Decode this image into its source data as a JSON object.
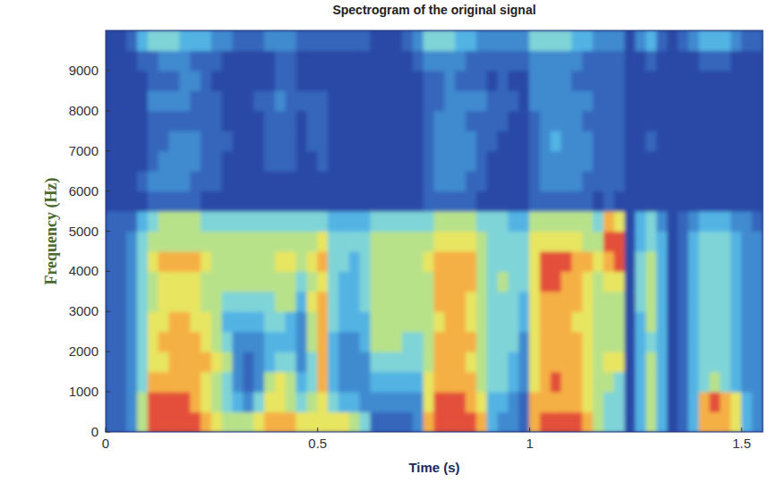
{
  "chart_data": {
    "type": "heatmap",
    "title": "Spectrogram of the original signal",
    "x_label": "Time (s)",
    "y_label": "Frequency (Hz)",
    "xlim": [
      0,
      1.55
    ],
    "ylim": [
      0,
      10000
    ],
    "xticks": [
      0,
      0.5,
      1,
      1.5
    ],
    "yticks": [
      0,
      1000,
      2000,
      3000,
      4000,
      5000,
      6000,
      7000,
      8000,
      9000
    ],
    "clim": [
      0,
      9
    ],
    "x": [
      0.0125,
      0.0375,
      0.0625,
      0.0875,
      0.1125,
      0.1375,
      0.1625,
      0.1875,
      0.2125,
      0.2375,
      0.2625,
      0.2875,
      0.3125,
      0.3375,
      0.3625,
      0.3875,
      0.4125,
      0.4375,
      0.4625,
      0.4875,
      0.5125,
      0.5375,
      0.5625,
      0.5875,
      0.6125,
      0.6375,
      0.6625,
      0.6875,
      0.7125,
      0.7375,
      0.7625,
      0.7875,
      0.8125,
      0.8375,
      0.8625,
      0.8875,
      0.9125,
      0.9375,
      0.9625,
      0.9875,
      1.0125,
      1.0375,
      1.0625,
      1.0875,
      1.1125,
      1.1375,
      1.1625,
      1.1875,
      1.2125,
      1.2375,
      1.2625,
      1.2875,
      1.3125,
      1.3375,
      1.3625,
      1.3875,
      1.4125,
      1.4375,
      1.4625,
      1.4875,
      1.5125,
      1.5375
    ],
    "y": [
      250,
      750,
      1250,
      1750,
      2250,
      2750,
      3250,
      3750,
      4250,
      4750,
      5250,
      5750,
      6250,
      6750,
      7250,
      7750,
      8250,
      8750,
      9250,
      9750
    ],
    "cells": [
      [
        2,
        2,
        2,
        2,
        2,
        2,
        2,
        2,
        2,
        2,
        2,
        1,
        1,
        1,
        1,
        1,
        1,
        1,
        1,
        1
      ],
      [
        2,
        2,
        2,
        2,
        2,
        2,
        2,
        2,
        2,
        2,
        2,
        1,
        1,
        1,
        1,
        1,
        1,
        1,
        1,
        1
      ],
      [
        3,
        3,
        3,
        3,
        3,
        3,
        3,
        3,
        3,
        3,
        2,
        1,
        1,
        1,
        1,
        1,
        1,
        1,
        1,
        2
      ],
      [
        6,
        6,
        5,
        5,
        5,
        5,
        5,
        5,
        5,
        5,
        4,
        1,
        2,
        1,
        1,
        1,
        1,
        1,
        2,
        4
      ],
      [
        9,
        9,
        8,
        7,
        7,
        7,
        6,
        6,
        7,
        6,
        5,
        2,
        3,
        2,
        2,
        2,
        3,
        2,
        2,
        5
      ],
      [
        9,
        9,
        8,
        7,
        8,
        7,
        7,
        7,
        8,
        6,
        6,
        2,
        3,
        3,
        2,
        2,
        3,
        2,
        3,
        5
      ],
      [
        9,
        9,
        8,
        8,
        8,
        8,
        7,
        7,
        8,
        6,
        6,
        2,
        3,
        3,
        3,
        2,
        3,
        2,
        3,
        5
      ],
      [
        9,
        9,
        8,
        8,
        8,
        8,
        7,
        7,
        8,
        6,
        6,
        2,
        3,
        3,
        3,
        2,
        3,
        3,
        3,
        4
      ],
      [
        9,
        8,
        8,
        8,
        8,
        7,
        7,
        7,
        8,
        6,
        6,
        2,
        2,
        3,
        3,
        2,
        2,
        3,
        2,
        4
      ],
      [
        8,
        7,
        7,
        8,
        7,
        7,
        6,
        6,
        7,
        6,
        5,
        1,
        2,
        2,
        2,
        2,
        2,
        2,
        2,
        4
      ],
      [
        7,
        6,
        6,
        7,
        6,
        6,
        6,
        6,
        6,
        6,
        5,
        1,
        2,
        2,
        2,
        2,
        2,
        1,
        2,
        3
      ],
      [
        6,
        5,
        5,
        6,
        5,
        4,
        5,
        6,
        6,
        6,
        5,
        1,
        1,
        1,
        2,
        1,
        1,
        1,
        1,
        3
      ],
      [
        6,
        4,
        3,
        3,
        3,
        4,
        5,
        6,
        6,
        6,
        5,
        1,
        1,
        1,
        1,
        1,
        1,
        1,
        1,
        2
      ],
      [
        6,
        3,
        2,
        2,
        3,
        4,
        5,
        6,
        6,
        6,
        5,
        1,
        1,
        1,
        1,
        1,
        1,
        1,
        1,
        2
      ],
      [
        7,
        5,
        3,
        3,
        3,
        4,
        5,
        6,
        6,
        6,
        5,
        1,
        1,
        1,
        1,
        1,
        2,
        1,
        1,
        2
      ],
      [
        8,
        7,
        6,
        4,
        4,
        5,
        5,
        6,
        6,
        6,
        5,
        1,
        1,
        2,
        2,
        2,
        2,
        1,
        1,
        3
      ],
      [
        8,
        7,
        7,
        5,
        4,
        5,
        6,
        6,
        7,
        6,
        5,
        1,
        1,
        2,
        2,
        2,
        3,
        2,
        2,
        3
      ],
      [
        8,
        6,
        6,
        5,
        4,
        4,
        6,
        6,
        7,
        6,
        5,
        1,
        1,
        2,
        2,
        2,
        2,
        2,
        2,
        3
      ],
      [
        7,
        5,
        4,
        3,
        3,
        3,
        4,
        5,
        6,
        6,
        5,
        1,
        1,
        1,
        1,
        1,
        2,
        1,
        1,
        2
      ],
      [
        7,
        6,
        5,
        5,
        6,
        6,
        7,
        6,
        7,
        6,
        5,
        1,
        1,
        1,
        2,
        2,
        2,
        1,
        1,
        2
      ],
      [
        7,
        7,
        8,
        8,
        8,
        8,
        8,
        7,
        8,
        7,
        5,
        1,
        1,
        2,
        2,
        2,
        2,
        1,
        1,
        2
      ],
      [
        7,
        5,
        4,
        4,
        4,
        5,
        5,
        5,
        5,
        5,
        4,
        1,
        1,
        1,
        1,
        1,
        1,
        1,
        1,
        2
      ],
      [
        7,
        4,
        3,
        3,
        3,
        4,
        4,
        4,
        5,
        5,
        4,
        1,
        1,
        1,
        1,
        1,
        1,
        1,
        1,
        2
      ],
      [
        6,
        4,
        3,
        3,
        3,
        4,
        4,
        4,
        4,
        5,
        4,
        1,
        1,
        1,
        1,
        1,
        1,
        1,
        1,
        2
      ],
      [
        5,
        3,
        3,
        3,
        4,
        4,
        5,
        5,
        5,
        5,
        4,
        1,
        1,
        1,
        1,
        1,
        1,
        1,
        1,
        2
      ],
      [
        2,
        3,
        4,
        5,
        6,
        6,
        6,
        6,
        6,
        6,
        5,
        1,
        1,
        1,
        1,
        1,
        1,
        1,
        1,
        1
      ],
      [
        2,
        3,
        4,
        5,
        6,
        6,
        6,
        6,
        6,
        6,
        5,
        1,
        1,
        1,
        1,
        1,
        1,
        1,
        1,
        1
      ],
      [
        2,
        3,
        4,
        5,
        6,
        6,
        6,
        6,
        6,
        6,
        5,
        1,
        1,
        1,
        1,
        1,
        1,
        1,
        1,
        1
      ],
      [
        2,
        3,
        4,
        5,
        5,
        6,
        6,
        6,
        6,
        6,
        5,
        1,
        1,
        1,
        1,
        1,
        1,
        1,
        1,
        2
      ],
      [
        3,
        3,
        4,
        5,
        5,
        6,
        6,
        6,
        6,
        6,
        5,
        1,
        1,
        1,
        1,
        1,
        1,
        1,
        2,
        3
      ],
      [
        8,
        7,
        7,
        6,
        6,
        6,
        6,
        6,
        7,
        6,
        5,
        2,
        2,
        2,
        2,
        2,
        2,
        2,
        3,
        5
      ],
      [
        9,
        9,
        8,
        8,
        8,
        7,
        8,
        8,
        8,
        7,
        6,
        2,
        3,
        3,
        3,
        3,
        2,
        2,
        3,
        5
      ],
      [
        9,
        9,
        8,
        8,
        8,
        8,
        8,
        8,
        8,
        7,
        6,
        2,
        3,
        3,
        3,
        3,
        3,
        3,
        3,
        5
      ],
      [
        9,
        9,
        8,
        8,
        8,
        8,
        8,
        8,
        8,
        7,
        6,
        2,
        3,
        3,
        3,
        3,
        3,
        2,
        3,
        4
      ],
      [
        9,
        8,
        8,
        7,
        8,
        7,
        7,
        8,
        8,
        7,
        6,
        2,
        2,
        3,
        3,
        2,
        3,
        2,
        2,
        4
      ],
      [
        8,
        7,
        6,
        6,
        6,
        6,
        6,
        6,
        6,
        6,
        5,
        1,
        2,
        2,
        2,
        2,
        3,
        2,
        2,
        3
      ],
      [
        4,
        4,
        5,
        5,
        5,
        5,
        5,
        5,
        5,
        5,
        5,
        1,
        1,
        1,
        2,
        2,
        2,
        1,
        2,
        3
      ],
      [
        3,
        4,
        5,
        5,
        5,
        5,
        5,
        6,
        5,
        5,
        5,
        1,
        1,
        1,
        1,
        2,
        2,
        2,
        2,
        3
      ],
      [
        3,
        3,
        4,
        4,
        5,
        5,
        5,
        5,
        5,
        5,
        4,
        1,
        1,
        1,
        1,
        1,
        2,
        1,
        2,
        3
      ],
      [
        2,
        2,
        3,
        3,
        3,
        4,
        4,
        5,
        5,
        5,
        4,
        1,
        1,
        1,
        1,
        1,
        1,
        1,
        2,
        3
      ],
      [
        8,
        8,
        7,
        7,
        7,
        7,
        7,
        7,
        7,
        7,
        6,
        2,
        2,
        2,
        2,
        2,
        3,
        3,
        3,
        5
      ],
      [
        9,
        8,
        8,
        8,
        8,
        8,
        8,
        9,
        9,
        7,
        6,
        2,
        3,
        3,
        3,
        3,
        3,
        3,
        3,
        5
      ],
      [
        9,
        8,
        9,
        8,
        8,
        8,
        8,
        9,
        9,
        7,
        6,
        2,
        3,
        3,
        4,
        3,
        3,
        3,
        3,
        5
      ],
      [
        9,
        8,
        8,
        8,
        8,
        8,
        8,
        8,
        9,
        7,
        6,
        2,
        3,
        3,
        3,
        3,
        3,
        3,
        3,
        5
      ],
      [
        9,
        8,
        8,
        8,
        8,
        7,
        8,
        8,
        8,
        7,
        6,
        2,
        3,
        3,
        3,
        3,
        3,
        2,
        3,
        4
      ],
      [
        8,
        7,
        7,
        7,
        7,
        7,
        7,
        7,
        8,
        6,
        6,
        2,
        2,
        3,
        3,
        2,
        3,
        2,
        2,
        4
      ],
      [
        6,
        6,
        6,
        6,
        6,
        6,
        6,
        6,
        7,
        6,
        5,
        1,
        2,
        2,
        2,
        2,
        2,
        2,
        2,
        3
      ],
      [
        5,
        5,
        6,
        7,
        6,
        6,
        6,
        7,
        8,
        9,
        8,
        2,
        2,
        2,
        2,
        2,
        2,
        2,
        2,
        3
      ],
      [
        5,
        5,
        5,
        7,
        6,
        6,
        6,
        7,
        9,
        9,
        7,
        1,
        2,
        2,
        2,
        2,
        2,
        2,
        2,
        3
      ],
      [
        1,
        1,
        1,
        1,
        1,
        1,
        1,
        1,
        1,
        1,
        1,
        1,
        1,
        1,
        1,
        1,
        1,
        1,
        1,
        1
      ],
      [
        4,
        4,
        4,
        4,
        4,
        4,
        5,
        5,
        5,
        4,
        4,
        1,
        1,
        1,
        1,
        1,
        1,
        1,
        1,
        3
      ],
      [
        6,
        6,
        6,
        6,
        5,
        6,
        6,
        6,
        6,
        5,
        5,
        1,
        1,
        1,
        2,
        1,
        1,
        1,
        2,
        4
      ],
      [
        4,
        4,
        4,
        4,
        4,
        4,
        4,
        4,
        4,
        4,
        3,
        1,
        1,
        1,
        1,
        1,
        1,
        1,
        1,
        2
      ],
      [
        1,
        1,
        1,
        1,
        1,
        1,
        1,
        1,
        1,
        1,
        1,
        1,
        1,
        1,
        1,
        1,
        1,
        1,
        1,
        1
      ],
      [
        2,
        2,
        2,
        2,
        2,
        2,
        2,
        2,
        2,
        2,
        2,
        1,
        1,
        1,
        1,
        1,
        1,
        1,
        1,
        2
      ],
      [
        4,
        4,
        4,
        4,
        4,
        4,
        4,
        4,
        4,
        4,
        3,
        1,
        1,
        1,
        1,
        1,
        1,
        1,
        1,
        3
      ],
      [
        8,
        8,
        5,
        5,
        5,
        5,
        5,
        5,
        5,
        5,
        4,
        1,
        1,
        1,
        1,
        1,
        1,
        1,
        2,
        4
      ],
      [
        8,
        9,
        6,
        5,
        5,
        5,
        5,
        5,
        5,
        5,
        4,
        1,
        1,
        1,
        1,
        1,
        1,
        1,
        2,
        4
      ],
      [
        8,
        8,
        5,
        5,
        5,
        5,
        5,
        5,
        5,
        5,
        4,
        1,
        1,
        1,
        1,
        1,
        1,
        1,
        2,
        4
      ],
      [
        7,
        7,
        4,
        4,
        4,
        4,
        4,
        4,
        4,
        4,
        3,
        1,
        1,
        1,
        1,
        1,
        1,
        1,
        1,
        3
      ],
      [
        4,
        4,
        3,
        3,
        3,
        3,
        3,
        3,
        3,
        3,
        3,
        1,
        1,
        1,
        1,
        1,
        1,
        1,
        1,
        2
      ],
      [
        3,
        3,
        3,
        3,
        3,
        3,
        3,
        3,
        3,
        3,
        2,
        1,
        1,
        1,
        1,
        1,
        1,
        1,
        1,
        2
      ]
    ]
  }
}
